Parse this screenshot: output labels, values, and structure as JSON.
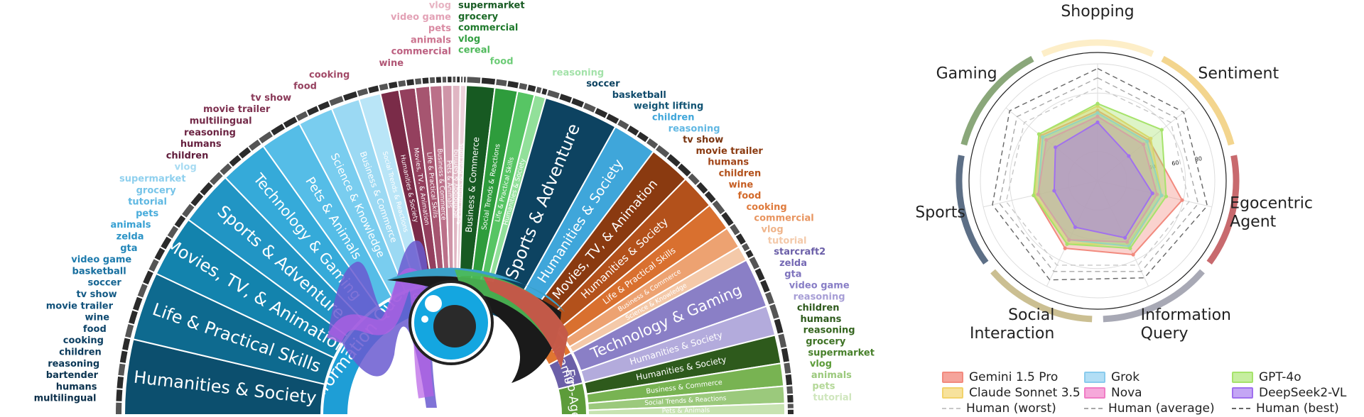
{
  "chart_data": [
    {
      "type": "sunburst",
      "title": "",
      "categories": [
        {
          "name": "Information Query",
          "color": "#1e9ed6",
          "subcategories": [
            {
              "name": "Humanities & Society",
              "color": "#0c4f6e"
            },
            {
              "name": "Life & Practical Skills",
              "color": "#0e6a8f"
            },
            {
              "name": "Movies, TV, & Animation",
              "color": "#1383ad"
            },
            {
              "name": "Sports & Adventure",
              "color": "#2195c4"
            },
            {
              "name": "Technology & Gaming",
              "color": "#35aad9"
            },
            {
              "name": "Pets & Animals",
              "color": "#55bde7"
            },
            {
              "name": "Science & Knowledge",
              "color": "#79cdef"
            },
            {
              "name": "Business & Commerce",
              "color": "#9bd9f3"
            },
            {
              "name": "Social Trends & Reactions",
              "color": "#b9e5f7"
            }
          ]
        },
        {
          "name": "Sentiment",
          "color": "#d94f77",
          "subcategories": [
            {
              "name": "Humanities & Society",
              "color": "#7a2b48"
            },
            {
              "name": "Movies, TV, & Animation",
              "color": "#94405e"
            },
            {
              "name": "Life & Practical Skills",
              "color": "#a65570"
            },
            {
              "name": "Business & Commerce",
              "color": "#bb7089"
            },
            {
              "name": "Pets & Animals",
              "color": "#cf95a8"
            },
            {
              "name": "Technology & Gaming",
              "color": "#e0b6c3"
            },
            {
              "name": "Social Trends & Reactions",
              "color": "#edd3db"
            }
          ]
        },
        {
          "name": "Shopping",
          "color": "#1f7a2c",
          "subcategories": [
            {
              "name": "Business & Commerce",
              "color": "#175a22"
            },
            {
              "name": "Social Trends & Reactions",
              "color": "#2e9c3c"
            },
            {
              "name": "Life & Practical Skills",
              "color": "#57c564"
            },
            {
              "name": "Humanities & Society",
              "color": "#92e09a"
            }
          ]
        },
        {
          "name": "Sports",
          "color": "#0e4a68",
          "subcategories": [
            {
              "name": "Sports & Adventure",
              "color": "#0d4361"
            },
            {
              "name": "Humanities & Society",
              "color": "#3fa6da"
            }
          ]
        },
        {
          "name": "Social",
          "color": "#e07631",
          "subcategories": [
            {
              "name": "Movies, TV, & Animation",
              "color": "#8a3a10"
            },
            {
              "name": "Humanities & Society",
              "color": "#b3511b"
            },
            {
              "name": "Life & Practical Skills",
              "color": "#d9702f"
            },
            {
              "name": "Business & Commerce",
              "color": "#eda271"
            },
            {
              "name": "Science & Knowledge",
              "color": "#f4c9a9"
            }
          ]
        },
        {
          "name": "Gaming",
          "color": "#6b5fa8",
          "subcategories": [
            {
              "name": "Technology & Gaming",
              "color": "#8a7fc6"
            },
            {
              "name": "Humanities & Society",
              "color": "#b3abdc"
            }
          ]
        },
        {
          "name": "Ego-Agent",
          "color": "#5d9c3a",
          "subcategories": [
            {
              "name": "Humanities & Society",
              "color": "#2e5a1c"
            },
            {
              "name": "Business & Commerce",
              "color": "#78b352"
            },
            {
              "name": "Social Trends & Reactions",
              "color": "#9bc97c"
            },
            {
              "name": "Pets & Animals",
              "color": "#c7e3b1"
            }
          ]
        }
      ],
      "keywords_left": [
        {
          "text": "vlog",
          "color": "#e7b3c2"
        },
        {
          "text": "video game",
          "color": "#e3a2b6"
        },
        {
          "text": "pets",
          "color": "#d98ba3"
        },
        {
          "text": "animals",
          "color": "#cc7590"
        },
        {
          "text": "commercial",
          "color": "#bc5f80"
        },
        {
          "text": "wine",
          "color": "#b05574"
        },
        {
          "text": "cooking",
          "color": "#a24a68"
        },
        {
          "text": "food",
          "color": "#964260"
        },
        {
          "text": "tv show",
          "color": "#893958"
        },
        {
          "text": "movie trailer",
          "color": "#7e3150"
        },
        {
          "text": "multilingual",
          "color": "#742a49"
        },
        {
          "text": "reasoning",
          "color": "#6c2443"
        },
        {
          "text": "humans",
          "color": "#651f3e"
        },
        {
          "text": "children",
          "color": "#5f1b3a"
        },
        {
          "text": "vlog",
          "color": "#a7dbf2"
        },
        {
          "text": "supermarket",
          "color": "#8fd0ee"
        },
        {
          "text": "grocery",
          "color": "#77c4e8"
        },
        {
          "text": "tutorial",
          "color": "#5fb8e2"
        },
        {
          "text": "pets",
          "color": "#48acdb"
        },
        {
          "text": "animals",
          "color": "#37a0d2"
        },
        {
          "text": "zelda",
          "color": "#2b93c6"
        },
        {
          "text": "gta",
          "color": "#2387b9"
        },
        {
          "text": "video game",
          "color": "#1d7bad"
        },
        {
          "text": "basketball",
          "color": "#186f9f"
        },
        {
          "text": "soccer",
          "color": "#156491"
        },
        {
          "text": "tv show",
          "color": "#135a85"
        },
        {
          "text": "movie trailer",
          "color": "#11517a"
        },
        {
          "text": "wine",
          "color": "#0f4a71"
        },
        {
          "text": "food",
          "color": "#0e4469"
        },
        {
          "text": "cooking",
          "color": "#0d3f62"
        },
        {
          "text": "children",
          "color": "#0c3b5c"
        },
        {
          "text": "reasoning",
          "color": "#0b3756"
        },
        {
          "text": "bartender",
          "color": "#0b3451"
        },
        {
          "text": "humans",
          "color": "#0a314d"
        },
        {
          "text": "multilingual",
          "color": "#0a2e49"
        }
      ],
      "keywords_right": [
        {
          "text": "supermarket",
          "color": "#175a22"
        },
        {
          "text": "grocery",
          "color": "#1b6a27"
        },
        {
          "text": "commercial",
          "color": "#1f7a2c"
        },
        {
          "text": "vlog",
          "color": "#34a043"
        },
        {
          "text": "cereal",
          "color": "#4fb95b"
        },
        {
          "text": "food",
          "color": "#6dcc77"
        },
        {
          "text": "reasoning",
          "color": "#a3e2a9"
        },
        {
          "text": "soccer",
          "color": "#0d4361"
        },
        {
          "text": "basketball",
          "color": "#0f4a6b"
        },
        {
          "text": "weight lifting",
          "color": "#125474"
        },
        {
          "text": "children",
          "color": "#3fa6da"
        },
        {
          "text": "reasoning",
          "color": "#62b8e3"
        },
        {
          "text": "tv show",
          "color": "#7a3510"
        },
        {
          "text": "movie trailer",
          "color": "#8a3a10"
        },
        {
          "text": "humans",
          "color": "#a2461a"
        },
        {
          "text": "children",
          "color": "#b3511b"
        },
        {
          "text": "wine",
          "color": "#c65e23"
        },
        {
          "text": "food",
          "color": "#d36a2a"
        },
        {
          "text": "cooking",
          "color": "#df7b3d"
        },
        {
          "text": "commercial",
          "color": "#e89560"
        },
        {
          "text": "vlog",
          "color": "#efb48a"
        },
        {
          "text": "tutorial",
          "color": "#f3c9a9"
        },
        {
          "text": "starcraft2",
          "color": "#6b5fa8"
        },
        {
          "text": "zelda",
          "color": "#7569b4"
        },
        {
          "text": "gta",
          "color": "#7e73bd"
        },
        {
          "text": "video game",
          "color": "#887ec6"
        },
        {
          "text": "reasoning",
          "color": "#a79ed6"
        },
        {
          "text": "children",
          "color": "#2e5a1c"
        },
        {
          "text": "humans",
          "color": "#2e5a1c"
        },
        {
          "text": "reasoning",
          "color": "#35651f"
        },
        {
          "text": "grocery",
          "color": "#3e7225"
        },
        {
          "text": "supermarket",
          "color": "#48802b"
        },
        {
          "text": "vlog",
          "color": "#5d9c3a"
        },
        {
          "text": "animals",
          "color": "#9bc97c"
        },
        {
          "text": "pets",
          "color": "#b4d898"
        },
        {
          "text": "tutorial",
          "color": "#cfe6bd"
        }
      ]
    },
    {
      "type": "radar",
      "title": "",
      "axes": [
        "Shopping",
        "Sentiment",
        "Egocentric Agent",
        "Information Query",
        "Social Interaction",
        "Sports",
        "Gaming"
      ],
      "axis_colors": [
        "#fdeec8",
        "#f3d58e",
        "#c86a6e",
        "#a8a9b5",
        "#cbbf92",
        "#5d6f86",
        "#8aa77a"
      ],
      "rlim": [
        0,
        100
      ],
      "tick_labels": [
        "40",
        "60",
        "80"
      ],
      "series": [
        {
          "name": "Gemini 1.5 Pro",
          "color": "#f28a7e",
          "values": [
            60,
            56,
            74,
            70,
            64,
            56,
            62
          ]
        },
        {
          "name": "Claude Sonnet 3.5",
          "color": "#f2d36b",
          "values": [
            64,
            58,
            56,
            60,
            60,
            55,
            64
          ]
        },
        {
          "name": "Human (worst)",
          "color": "#c8c8c8",
          "dash": "dash",
          "values": [
            80,
            80,
            80,
            80,
            80,
            80,
            80
          ]
        },
        {
          "name": "Grok",
          "color": "#89cbed",
          "values": [
            58,
            54,
            56,
            62,
            56,
            52,
            60
          ]
        },
        {
          "name": "Nova",
          "color": "#f07cc5",
          "values": [
            55,
            50,
            52,
            58,
            56,
            52,
            56
          ]
        },
        {
          "name": "Human (average)",
          "color": "#a8a8a8",
          "dash": "dash",
          "values": [
            88,
            86,
            88,
            86,
            86,
            86,
            88
          ]
        },
        {
          "name": "GPT-4o",
          "color": "#a6e36b",
          "values": [
            66,
            70,
            60,
            64,
            60,
            56,
            64
          ]
        },
        {
          "name": "DeepSeek2-VL",
          "color": "#a070ee",
          "values": [
            50,
            34,
            48,
            54,
            44,
            38,
            46
          ]
        },
        {
          "name": "Human (best)",
          "color": "#666666",
          "dash": "dash",
          "values": [
            96,
            94,
            96,
            92,
            94,
            92,
            96
          ]
        }
      ]
    }
  ]
}
